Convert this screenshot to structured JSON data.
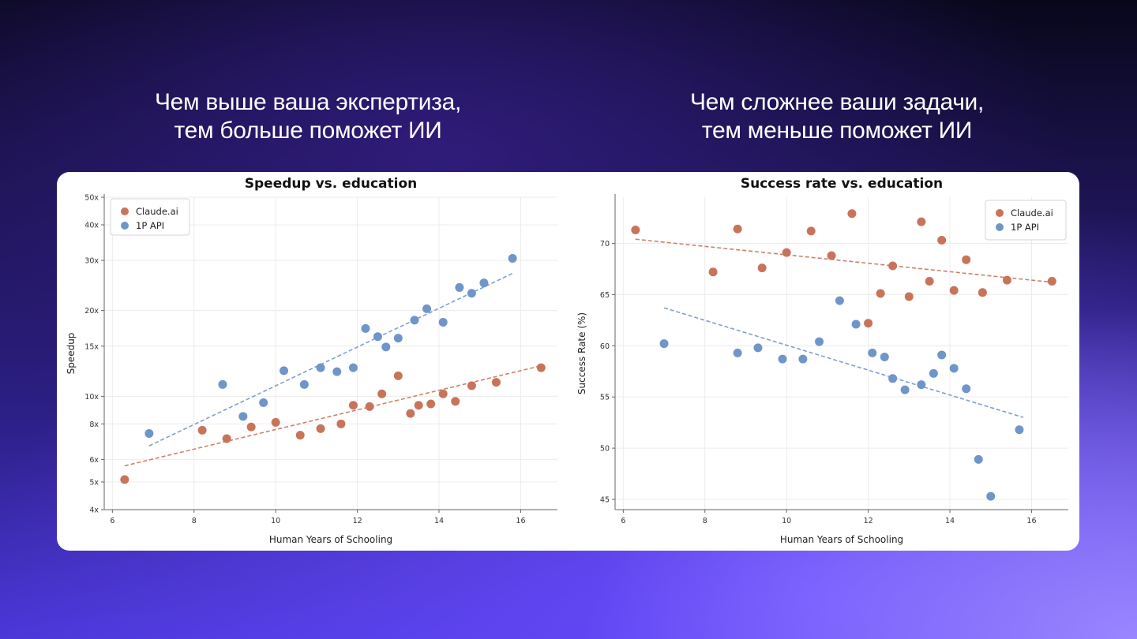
{
  "captions": {
    "left": [
      "Чем выше ваша экспертиза,",
      "тем больше поможет ИИ"
    ],
    "right": [
      "Чем сложнее ваши задачи,",
      "тем меньше поможет ИИ"
    ]
  },
  "colors": {
    "claude": "#c8745a",
    "api": "#6f95c9"
  },
  "chart_data": [
    {
      "type": "scatter",
      "title": "Speedup vs. education",
      "xlabel": "Human Years of Schooling",
      "ylabel": "Speedup",
      "yscale": "log",
      "xlim": [
        5.8,
        16.9
      ],
      "ylim": [
        4,
        50
      ],
      "xticks": [
        6,
        8,
        10,
        12,
        14,
        16
      ],
      "yticks": [
        4,
        5,
        6,
        8,
        10,
        15,
        20,
        30,
        40,
        50
      ],
      "ytick_labels": [
        "4x",
        "5x",
        "6x",
        "8x",
        "10x",
        "15x",
        "20x",
        "30x",
        "40x",
        "50x"
      ],
      "legend_position": "top-left",
      "series": [
        {
          "name": "Claude.ai",
          "color": "#c8745a",
          "points": [
            [
              6.3,
              5.1
            ],
            [
              8.2,
              7.6
            ],
            [
              8.8,
              7.1
            ],
            [
              9.4,
              7.8
            ],
            [
              10.0,
              8.1
            ],
            [
              10.6,
              7.3
            ],
            [
              11.1,
              7.7
            ],
            [
              11.6,
              8.0
            ],
            [
              11.9,
              9.3
            ],
            [
              12.3,
              9.2
            ],
            [
              12.6,
              10.2
            ],
            [
              13.0,
              11.8
            ],
            [
              13.3,
              8.7
            ],
            [
              13.5,
              9.3
            ],
            [
              13.8,
              9.4
            ],
            [
              14.1,
              10.2
            ],
            [
              14.4,
              9.6
            ],
            [
              14.8,
              10.9
            ],
            [
              15.4,
              11.2
            ],
            [
              16.5,
              12.6
            ]
          ],
          "trend": [
            [
              6.3,
              5.7
            ],
            [
              16.5,
              12.8
            ]
          ]
        },
        {
          "name": "1P API",
          "color": "#6f95c9",
          "points": [
            [
              6.9,
              7.4
            ],
            [
              8.7,
              11.0
            ],
            [
              9.2,
              8.5
            ],
            [
              9.7,
              9.5
            ],
            [
              10.2,
              12.3
            ],
            [
              10.7,
              11.0
            ],
            [
              11.1,
              12.6
            ],
            [
              11.5,
              12.2
            ],
            [
              11.9,
              12.6
            ],
            [
              12.2,
              17.3
            ],
            [
              12.5,
              16.2
            ],
            [
              12.7,
              14.9
            ],
            [
              13.0,
              16.0
            ],
            [
              13.4,
              18.5
            ],
            [
              13.7,
              20.3
            ],
            [
              14.1,
              18.2
            ],
            [
              14.5,
              24.1
            ],
            [
              14.8,
              23.0
            ],
            [
              15.1,
              25.0
            ],
            [
              15.8,
              30.5
            ]
          ],
          "trend": [
            [
              6.9,
              6.7
            ],
            [
              15.8,
              27.0
            ]
          ]
        }
      ]
    },
    {
      "type": "scatter",
      "title": "Success rate vs. education",
      "xlabel": "Human Years of Schooling",
      "ylabel": "Success Rate (%)",
      "xlim": [
        5.8,
        16.9
      ],
      "ylim": [
        44,
        74.5
      ],
      "xticks": [
        6,
        8,
        10,
        12,
        14,
        16
      ],
      "yticks": [
        45,
        50,
        55,
        60,
        65,
        70
      ],
      "legend_position": "top-right",
      "series": [
        {
          "name": "Claude.ai",
          "color": "#c8745a",
          "points": [
            [
              6.3,
              71.3
            ],
            [
              8.2,
              67.2
            ],
            [
              8.8,
              71.4
            ],
            [
              9.4,
              67.6
            ],
            [
              10.0,
              69.1
            ],
            [
              10.6,
              71.2
            ],
            [
              11.1,
              68.8
            ],
            [
              11.6,
              72.9
            ],
            [
              12.0,
              62.2
            ],
            [
              12.3,
              65.1
            ],
            [
              12.6,
              67.8
            ],
            [
              13.0,
              64.8
            ],
            [
              13.3,
              72.1
            ],
            [
              13.5,
              66.3
            ],
            [
              13.8,
              70.3
            ],
            [
              14.1,
              65.4
            ],
            [
              14.4,
              68.4
            ],
            [
              14.8,
              65.2
            ],
            [
              15.4,
              66.4
            ],
            [
              16.5,
              66.3
            ]
          ],
          "trend": [
            [
              6.3,
              70.4
            ],
            [
              16.5,
              66.2
            ]
          ]
        },
        {
          "name": "1P API",
          "color": "#6f95c9",
          "points": [
            [
              7.0,
              60.2
            ],
            [
              8.8,
              59.3
            ],
            [
              9.3,
              59.8
            ],
            [
              9.9,
              58.7
            ],
            [
              10.4,
              58.7
            ],
            [
              10.8,
              60.4
            ],
            [
              11.3,
              64.4
            ],
            [
              11.7,
              62.1
            ],
            [
              12.1,
              59.3
            ],
            [
              12.4,
              58.9
            ],
            [
              12.6,
              56.8
            ],
            [
              12.9,
              55.7
            ],
            [
              13.3,
              56.2
            ],
            [
              13.6,
              57.3
            ],
            [
              13.8,
              59.1
            ],
            [
              14.1,
              57.8
            ],
            [
              14.4,
              55.8
            ],
            [
              14.7,
              48.9
            ],
            [
              15.0,
              45.3
            ],
            [
              15.7,
              51.8
            ]
          ],
          "trend": [
            [
              7.0,
              63.7
            ],
            [
              15.8,
              53.0
            ]
          ]
        }
      ]
    }
  ]
}
